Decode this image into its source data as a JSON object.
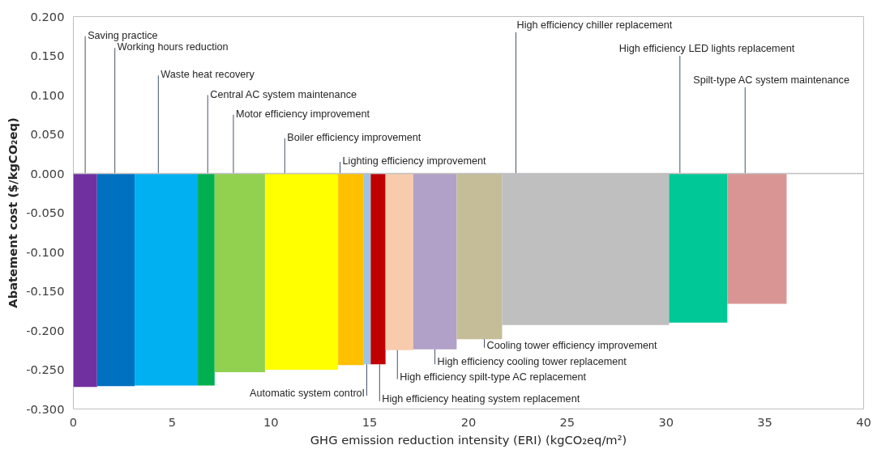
{
  "chart_data": {
    "type": "histogram",
    "xlabel": "GHG emission reduction intensity (ERI) (kgCO₂eq/m²)",
    "ylabel": "Abatement cost ($/kgCO₂eq)",
    "bins": [
      0,
      1.2,
      3.1,
      6.3,
      7.15,
      9.7,
      13.4,
      14.7,
      15.05,
      15.8,
      17.2,
      19.4,
      21.7,
      30.15,
      33.1,
      36.1
    ],
    "values": [
      -0.272,
      -0.271,
      -0.27,
      -0.27,
      -0.253,
      -0.25,
      -0.244,
      -0.243,
      -0.243,
      -0.225,
      -0.224,
      -0.211,
      -0.193,
      -0.19,
      -0.166
    ],
    "colors": [
      "#7030a0",
      "#0070c0",
      "#00b0f0",
      "#00b050",
      "#92d050",
      "#ffff00",
      "#ffc000",
      "#9dc3e6",
      "#c00000",
      "#f8cbad",
      "#b1a0c7",
      "#c4bd97",
      "#bfbfbf",
      "#00c896",
      "#d99594"
    ],
    "xlim": [
      0,
      40
    ],
    "xticks": [
      0,
      5,
      10,
      15,
      20,
      25,
      30,
      35,
      40
    ],
    "ylim": [
      -0.3,
      0.2
    ],
    "yticks": [
      {
        "value": -0.3,
        "label": "-0.300"
      },
      {
        "value": -0.25,
        "label": "-0.250"
      },
      {
        "value": -0.2,
        "label": "-0.200"
      },
      {
        "value": -0.15,
        "label": "-0.150"
      },
      {
        "value": -0.1,
        "label": "-0.100"
      },
      {
        "value": -0.05,
        "label": "-0.050"
      },
      {
        "value": 0,
        "label": "0.000"
      },
      {
        "value": 0.05,
        "label": "0.050"
      },
      {
        "value": 0.1,
        "label": "0.100"
      },
      {
        "value": 0.15,
        "label": "0.150"
      },
      {
        "value": 0.2,
        "label": "0.200"
      }
    ],
    "ref_lines": [
      {
        "axis": "y",
        "value": 0,
        "color": "#bfbfbf"
      }
    ],
    "grid": false,
    "annotations": [
      {
        "text": "Saving practice",
        "x": 0.6,
        "y": 0
      },
      {
        "text": "Working hours reduction",
        "x": 2.1,
        "y": 0
      },
      {
        "text": "Waste heat recovery",
        "x": 4.3,
        "y": 0
      },
      {
        "text": "Central AC system maintenance",
        "x": 6.8,
        "y": 0
      },
      {
        "text": "Motor efficiency improvement",
        "x": 8.1,
        "y": 0
      },
      {
        "text": "Boiler efficiency improvement",
        "x": 10.7,
        "y": 0
      },
      {
        "text": "Lighting efficiency improvement",
        "x": 13.5,
        "y": 0
      },
      {
        "text": "Automatic system control",
        "x": 14.85,
        "y": -0.243
      },
      {
        "text": "High efficiency heating system replacement",
        "x": 15.5,
        "y": -0.243
      },
      {
        "text": "High efficiency spilt-type AC replacement",
        "x": 16.4,
        "y": -0.225
      },
      {
        "text": "High efficiency cooling tower replacement",
        "x": 18.3,
        "y": -0.224
      },
      {
        "text": "Cooling tower efficiency improvement",
        "x": 20.8,
        "y": -0.211
      },
      {
        "text": "High efficiency chiller replacement",
        "x": 22.4,
        "y": 0
      },
      {
        "text": "High efficiency LED lights replacement",
        "x": 30.7,
        "y": 0
      },
      {
        "text": "Spilt-type AC system maintenance",
        "x": 34.0,
        "y": 0
      }
    ]
  }
}
